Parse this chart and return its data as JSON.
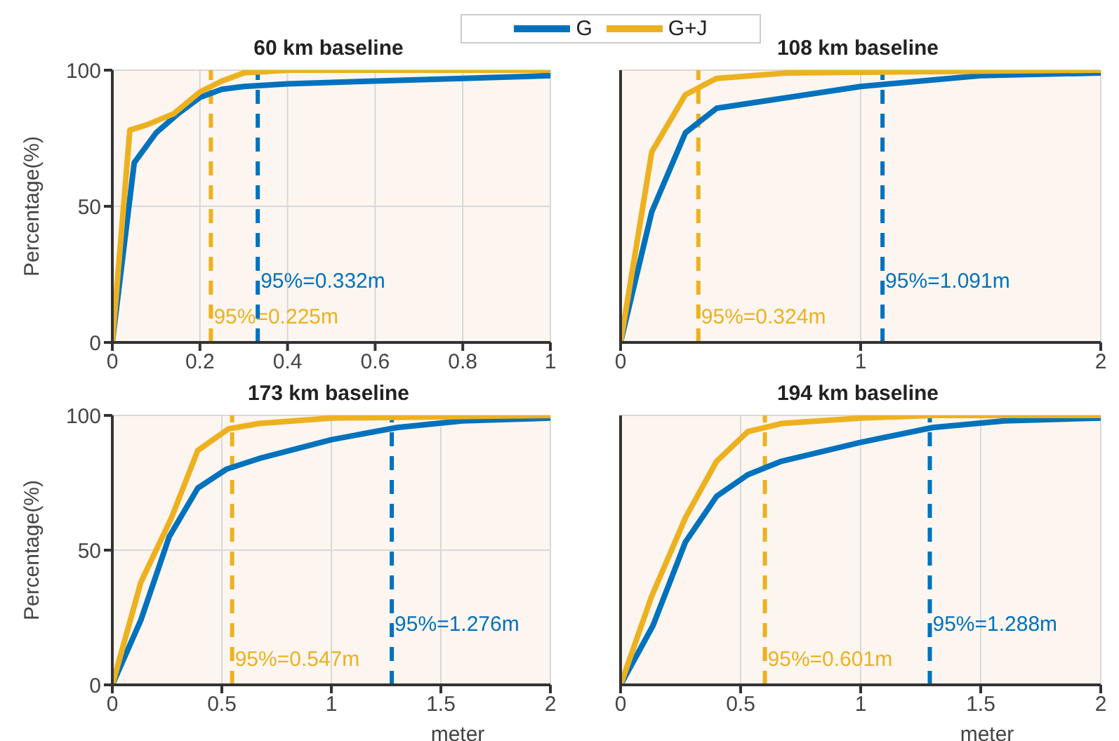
{
  "chart_data": [
    {
      "type": "line",
      "title": "60 km baseline",
      "ylabel": "Percentage(%)",
      "xlim": [
        0,
        1
      ],
      "xticks": [
        0,
        0.2,
        0.4,
        0.6,
        0.8,
        1
      ],
      "ylim": [
        0,
        100
      ],
      "yticks": [
        0,
        50,
        100
      ],
      "grid": true,
      "legend": "top",
      "line_style": "solid",
      "marker": "none",
      "series": [
        {
          "name": "G",
          "color": "#0072bd",
          "x": [
            0,
            0.05,
            0.1,
            0.15,
            0.2,
            0.25,
            0.3,
            0.4,
            0.6,
            0.8,
            1
          ],
          "values": [
            0,
            66,
            77,
            84,
            90,
            93,
            94,
            95,
            96,
            97,
            98
          ]
        },
        {
          "name": "G+J",
          "color": "#edb120",
          "x": [
            0,
            0.04,
            0.08,
            0.14,
            0.2,
            0.25,
            0.3,
            0.4,
            1
          ],
          "values": [
            0,
            78,
            80,
            84,
            92,
            96,
            99,
            100,
            100
          ]
        }
      ],
      "ref_lines": [
        {
          "axis": "x",
          "value": 0.225,
          "label": "95%=0.225m",
          "color": "#edb120",
          "line_style": "dashed"
        },
        {
          "axis": "x",
          "value": 0.332,
          "label": "95%=0.332m",
          "color": "#0072bd",
          "line_style": "dashed"
        }
      ]
    },
    {
      "type": "line",
      "title": "108 km baseline",
      "xlim": [
        0,
        2
      ],
      "xticks": [
        0,
        1,
        2
      ],
      "ylim": [
        0,
        100
      ],
      "yticks": [
        0,
        50,
        100
      ],
      "grid": true,
      "tick_labels": "x",
      "line_style": "solid",
      "marker": "none",
      "series": [
        {
          "color": "#0072bd",
          "x": [
            0,
            0.13,
            0.27,
            0.4,
            1,
            1.5,
            2
          ],
          "values": [
            0,
            48,
            77,
            86,
            94,
            98,
            99
          ]
        },
        {
          "color": "#edb120",
          "x": [
            0,
            0.13,
            0.27,
            0.4,
            0.7,
            2
          ],
          "values": [
            0,
            70,
            91,
            97,
            99,
            100
          ]
        }
      ],
      "ref_lines": [
        {
          "axis": "x",
          "value": 0.324,
          "label": "95%=0.324m",
          "color": "#edb120",
          "line_style": "dashed"
        },
        {
          "axis": "x",
          "value": 1.091,
          "label": "95%=1.091m",
          "color": "#0072bd",
          "line_style": "dashed"
        }
      ]
    },
    {
      "type": "line",
      "title": "173 km baseline",
      "xlabel": "meter",
      "ylabel": "Percentage(%)",
      "xlim": [
        0,
        2
      ],
      "xticks": [
        0,
        0.5,
        1,
        1.5,
        2
      ],
      "ylim": [
        0,
        100
      ],
      "yticks": [
        0,
        50,
        100
      ],
      "grid": true,
      "line_style": "solid",
      "marker": "none",
      "series": [
        {
          "color": "#0072bd",
          "x": [
            0,
            0.13,
            0.26,
            0.39,
            0.52,
            0.67,
            1,
            1.3,
            1.6,
            2
          ],
          "values": [
            0,
            24,
            55,
            73,
            80,
            84,
            91,
            95.5,
            98,
            99
          ]
        },
        {
          "color": "#edb120",
          "x": [
            0,
            0.13,
            0.27,
            0.39,
            0.53,
            0.67,
            1,
            2
          ],
          "values": [
            0,
            38,
            62,
            87,
            95,
            97,
            99,
            100
          ]
        }
      ],
      "ref_lines": [
        {
          "axis": "x",
          "value": 0.547,
          "label": "95%=0.547m",
          "color": "#edb120",
          "line_style": "dashed"
        },
        {
          "axis": "x",
          "value": 1.276,
          "label": "95%=1.276m",
          "color": "#0072bd",
          "line_style": "dashed"
        }
      ]
    },
    {
      "type": "line",
      "title": "194 km baseline",
      "xlabel": "meter",
      "xlim": [
        0,
        2
      ],
      "xticks": [
        0,
        0.5,
        1,
        1.5,
        2
      ],
      "ylim": [
        0,
        100
      ],
      "yticks": [
        0,
        50,
        100
      ],
      "grid": true,
      "tick_labels": "x",
      "line_style": "solid",
      "marker": "none",
      "series": [
        {
          "color": "#0072bd",
          "x": [
            0,
            0.135,
            0.27,
            0.4,
            0.53,
            0.67,
            1,
            1.3,
            1.6,
            2
          ],
          "values": [
            0,
            22,
            53,
            70,
            78,
            83,
            90,
            95.5,
            98,
            99
          ]
        },
        {
          "color": "#edb120",
          "x": [
            0,
            0.13,
            0.27,
            0.4,
            0.53,
            0.67,
            1,
            1.3,
            2
          ],
          "values": [
            0,
            33,
            62,
            83,
            94,
            97,
            99,
            100,
            100
          ]
        }
      ],
      "ref_lines": [
        {
          "axis": "x",
          "value": 0.601,
          "label": "95%=0.601m",
          "color": "#edb120",
          "line_style": "dashed"
        },
        {
          "axis": "x",
          "value": 1.288,
          "label": "95%=1.288m",
          "color": "#0072bd",
          "line_style": "dashed"
        }
      ]
    }
  ]
}
